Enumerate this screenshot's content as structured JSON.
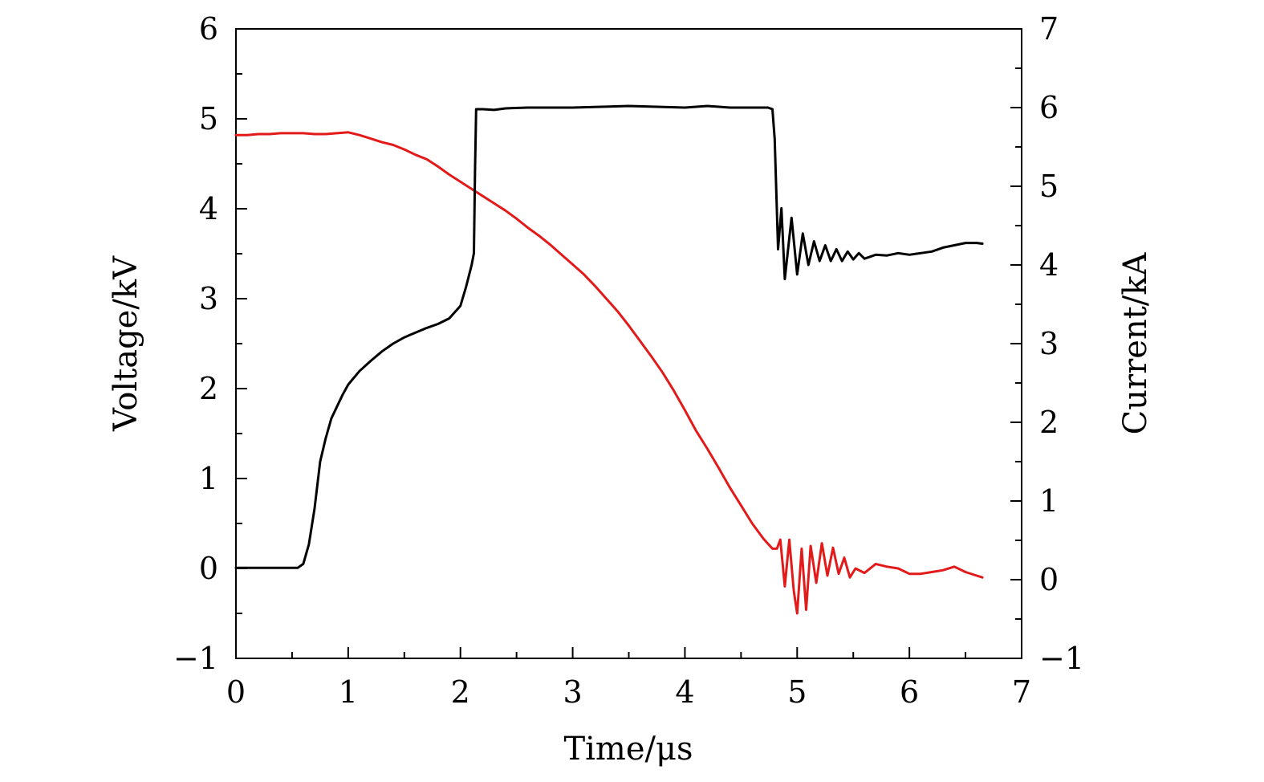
{
  "chart_data": {
    "type": "line",
    "xlabel": "Time/μs",
    "ylabel": "Voltage/kV",
    "y2label": "Current/kA",
    "xlim": [
      0,
      7
    ],
    "ylim": [
      -1,
      6
    ],
    "y2lim": [
      -1,
      7
    ],
    "x_ticks": [
      0,
      1,
      2,
      3,
      4,
      5,
      6,
      7
    ],
    "y_ticks": [
      -1,
      0,
      1,
      2,
      3,
      4,
      5,
      6
    ],
    "y2_ticks": [
      -1,
      0,
      1,
      2,
      3,
      4,
      5,
      6,
      7
    ],
    "x_tick_labels": [
      "0",
      "1",
      "2",
      "3",
      "4",
      "5",
      "6",
      "7"
    ],
    "y_tick_labels": [
      "−1",
      "0",
      "1",
      "2",
      "3",
      "4",
      "5",
      "6"
    ],
    "y2_tick_labels": [
      "−1",
      "0",
      "1",
      "2",
      "3",
      "4",
      "5",
      "6",
      "7"
    ],
    "grid": false,
    "legend": "none",
    "series": [
      {
        "axis": "left",
        "color": "#e31a1a",
        "points": [
          [
            0,
            4.82
          ],
          [
            0.1,
            4.82
          ],
          [
            0.2,
            4.83
          ],
          [
            0.3,
            4.83
          ],
          [
            0.4,
            4.84
          ],
          [
            0.5,
            4.84
          ],
          [
            0.6,
            4.84
          ],
          [
            0.7,
            4.83
          ],
          [
            0.8,
            4.83
          ],
          [
            0.9,
            4.84
          ],
          [
            1.0,
            4.85
          ],
          [
            1.1,
            4.82
          ],
          [
            1.2,
            4.78
          ],
          [
            1.3,
            4.74
          ],
          [
            1.4,
            4.71
          ],
          [
            1.5,
            4.66
          ],
          [
            1.6,
            4.6
          ],
          [
            1.7,
            4.55
          ],
          [
            1.8,
            4.47
          ],
          [
            1.9,
            4.38
          ],
          [
            2.0,
            4.3
          ],
          [
            2.1,
            4.22
          ],
          [
            2.2,
            4.14
          ],
          [
            2.3,
            4.06
          ],
          [
            2.4,
            3.98
          ],
          [
            2.5,
            3.89
          ],
          [
            2.6,
            3.79
          ],
          [
            2.7,
            3.7
          ],
          [
            2.8,
            3.6
          ],
          [
            2.9,
            3.49
          ],
          [
            3.0,
            3.38
          ],
          [
            3.1,
            3.27
          ],
          [
            3.2,
            3.14
          ],
          [
            3.3,
            3.0
          ],
          [
            3.4,
            2.86
          ],
          [
            3.5,
            2.7
          ],
          [
            3.6,
            2.53
          ],
          [
            3.7,
            2.36
          ],
          [
            3.8,
            2.18
          ],
          [
            3.9,
            1.98
          ],
          [
            4.0,
            1.76
          ],
          [
            4.1,
            1.53
          ],
          [
            4.2,
            1.33
          ],
          [
            4.3,
            1.12
          ],
          [
            4.4,
            0.9
          ],
          [
            4.5,
            0.7
          ],
          [
            4.6,
            0.5
          ],
          [
            4.7,
            0.33
          ],
          [
            4.78,
            0.22
          ],
          [
            4.82,
            0.22
          ],
          [
            4.85,
            0.32
          ],
          [
            4.89,
            -0.2
          ],
          [
            4.93,
            0.32
          ],
          [
            4.97,
            -0.25
          ],
          [
            5.0,
            -0.5
          ],
          [
            5.04,
            0.22
          ],
          [
            5.08,
            -0.46
          ],
          [
            5.12,
            0.25
          ],
          [
            5.17,
            -0.16
          ],
          [
            5.22,
            0.28
          ],
          [
            5.27,
            -0.08
          ],
          [
            5.32,
            0.23
          ],
          [
            5.37,
            -0.06
          ],
          [
            5.42,
            0.12
          ],
          [
            5.47,
            -0.1
          ],
          [
            5.52,
            0.0
          ],
          [
            5.6,
            -0.05
          ],
          [
            5.7,
            0.05
          ],
          [
            5.8,
            0.02
          ],
          [
            5.9,
            0.0
          ],
          [
            6.0,
            -0.06
          ],
          [
            6.1,
            -0.06
          ],
          [
            6.2,
            -0.04
          ],
          [
            6.3,
            -0.02
          ],
          [
            6.4,
            0.02
          ],
          [
            6.5,
            -0.04
          ],
          [
            6.6,
            -0.08
          ],
          [
            6.65,
            -0.1
          ]
        ]
      },
      {
        "axis": "right",
        "color": "#000000",
        "points": [
          [
            0,
            0.15
          ],
          [
            0.1,
            0.15
          ],
          [
            0.2,
            0.15
          ],
          [
            0.3,
            0.15
          ],
          [
            0.4,
            0.15
          ],
          [
            0.5,
            0.15
          ],
          [
            0.55,
            0.15
          ],
          [
            0.6,
            0.2
          ],
          [
            0.65,
            0.45
          ],
          [
            0.7,
            0.9
          ],
          [
            0.75,
            1.5
          ],
          [
            0.8,
            1.8
          ],
          [
            0.85,
            2.05
          ],
          [
            0.9,
            2.2
          ],
          [
            0.95,
            2.35
          ],
          [
            1.0,
            2.48
          ],
          [
            1.1,
            2.65
          ],
          [
            1.2,
            2.78
          ],
          [
            1.3,
            2.9
          ],
          [
            1.4,
            3.0
          ],
          [
            1.5,
            3.08
          ],
          [
            1.6,
            3.14
          ],
          [
            1.7,
            3.2
          ],
          [
            1.8,
            3.25
          ],
          [
            1.9,
            3.32
          ],
          [
            2.0,
            3.48
          ],
          [
            2.05,
            3.72
          ],
          [
            2.1,
            4.0
          ],
          [
            2.12,
            4.15
          ],
          [
            2.13,
            5.2
          ],
          [
            2.14,
            5.98
          ],
          [
            2.2,
            5.98
          ],
          [
            2.3,
            5.97
          ],
          [
            2.4,
            5.99
          ],
          [
            2.6,
            6.0
          ],
          [
            3.0,
            6.0
          ],
          [
            3.5,
            6.02
          ],
          [
            4.0,
            6.0
          ],
          [
            4.2,
            6.02
          ],
          [
            4.4,
            6.0
          ],
          [
            4.6,
            6.0
          ],
          [
            4.74,
            6.0
          ],
          [
            4.78,
            5.98
          ],
          [
            4.8,
            5.6
          ],
          [
            4.83,
            4.2
          ],
          [
            4.86,
            4.72
          ],
          [
            4.89,
            3.82
          ],
          [
            4.95,
            4.6
          ],
          [
            5.0,
            3.88
          ],
          [
            5.05,
            4.4
          ],
          [
            5.1,
            4.0
          ],
          [
            5.15,
            4.3
          ],
          [
            5.2,
            4.05
          ],
          [
            5.25,
            4.25
          ],
          [
            5.3,
            4.05
          ],
          [
            5.35,
            4.2
          ],
          [
            5.4,
            4.05
          ],
          [
            5.45,
            4.17
          ],
          [
            5.5,
            4.07
          ],
          [
            5.55,
            4.15
          ],
          [
            5.6,
            4.08
          ],
          [
            5.7,
            4.13
          ],
          [
            5.8,
            4.12
          ],
          [
            5.9,
            4.15
          ],
          [
            6.0,
            4.13
          ],
          [
            6.1,
            4.15
          ],
          [
            6.2,
            4.17
          ],
          [
            6.3,
            4.22
          ],
          [
            6.4,
            4.25
          ],
          [
            6.5,
            4.28
          ],
          [
            6.6,
            4.28
          ],
          [
            6.65,
            4.27
          ]
        ]
      }
    ]
  }
}
